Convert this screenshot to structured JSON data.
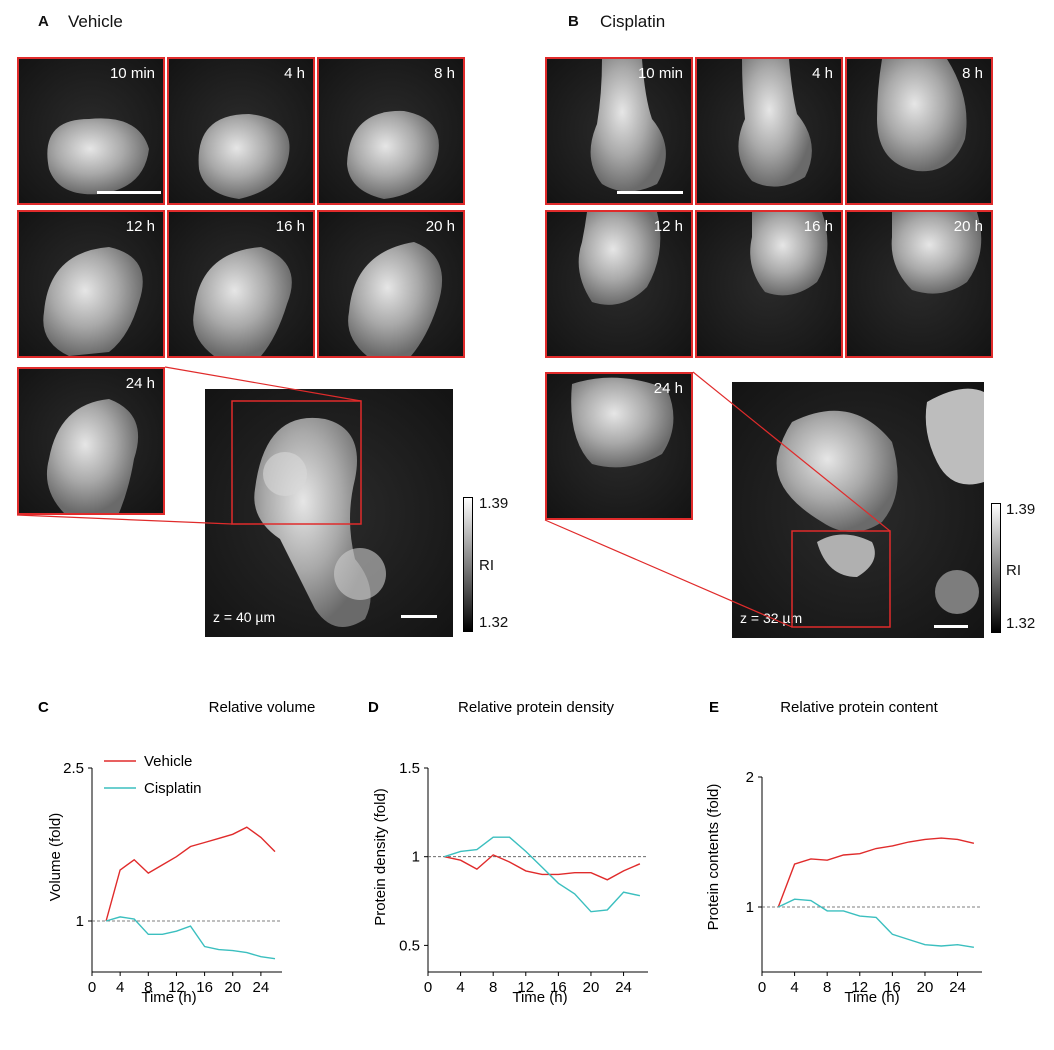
{
  "panels": {
    "A": {
      "letter": "A",
      "title": "Vehicle",
      "tiles": [
        "10 min",
        "4 h",
        "8 h",
        "12 h",
        "16 h",
        "20 h",
        "24 h"
      ],
      "z_label": "z = 40 µm"
    },
    "B": {
      "letter": "B",
      "title": "Cisplatin",
      "tiles": [
        "10 min",
        "4 h",
        "8 h",
        "12 h",
        "16 h",
        "20 h",
        "24 h"
      ],
      "z_label": "z = 32 µm"
    }
  },
  "colorbar": {
    "max": "1.39",
    "label": "RI",
    "min": "1.32"
  },
  "colors": {
    "vehicle": "#e02b2b",
    "cisplatin": "#3bbfbf",
    "frame": "#e02b2b"
  },
  "chart_data": [
    {
      "letter": "C",
      "type": "line",
      "title": "Relative volume",
      "xlabel": "Time (h)",
      "ylabel": "Volume (fold)",
      "xlim": [
        0,
        27
      ],
      "ylim": [
        0.5,
        2.5
      ],
      "xticks": [
        0,
        4,
        8,
        12,
        16,
        20,
        24
      ],
      "yticks": [
        1,
        2.5
      ],
      "yticklabels": [
        "1",
        "2.5"
      ],
      "reference_line": 1,
      "legend": [
        "Vehicle",
        "Cisplatin"
      ],
      "series": [
        {
          "name": "Vehicle",
          "x": [
            2,
            4,
            6,
            8,
            10,
            12,
            14,
            16,
            18,
            20,
            22,
            24,
            26
          ],
          "values": [
            1.0,
            1.5,
            1.6,
            1.47,
            1.55,
            1.63,
            1.73,
            1.77,
            1.81,
            1.85,
            1.92,
            1.82,
            1.68
          ]
        },
        {
          "name": "Cisplatin",
          "x": [
            2,
            4,
            6,
            8,
            10,
            12,
            14,
            16,
            18,
            20,
            22,
            24,
            26
          ],
          "values": [
            1.0,
            1.04,
            1.02,
            0.87,
            0.87,
            0.9,
            0.95,
            0.75,
            0.72,
            0.71,
            0.69,
            0.65,
            0.63
          ]
        }
      ]
    },
    {
      "letter": "D",
      "type": "line",
      "title": "Relative protein density",
      "xlabel": "Time (h)",
      "ylabel": "Protein density (fold)",
      "xlim": [
        0,
        27
      ],
      "ylim": [
        0.35,
        1.5
      ],
      "xticks": [
        0,
        4,
        8,
        12,
        16,
        20,
        24
      ],
      "yticks": [
        0.5,
        1,
        1.5
      ],
      "yticklabels": [
        "0.5",
        "1",
        "1.5"
      ],
      "reference_line": 1,
      "series": [
        {
          "name": "Vehicle",
          "x": [
            2,
            4,
            6,
            8,
            10,
            12,
            14,
            16,
            18,
            20,
            22,
            24,
            26
          ],
          "values": [
            1.0,
            0.98,
            0.93,
            1.01,
            0.97,
            0.92,
            0.9,
            0.9,
            0.91,
            0.91,
            0.87,
            0.92,
            0.96
          ]
        },
        {
          "name": "Cisplatin",
          "x": [
            2,
            4,
            6,
            8,
            10,
            12,
            14,
            16,
            18,
            20,
            22,
            24,
            26
          ],
          "values": [
            1.0,
            1.03,
            1.04,
            1.11,
            1.11,
            1.03,
            0.94,
            0.85,
            0.79,
            0.69,
            0.7,
            0.8,
            0.78
          ]
        }
      ]
    },
    {
      "letter": "E",
      "type": "line",
      "title": "Relative protein content",
      "xlabel": "Time (h)",
      "ylabel": "Protein contents (fold)",
      "xlim": [
        0,
        27
      ],
      "ylim": [
        0.5,
        2.0
      ],
      "xticks": [
        0,
        4,
        8,
        12,
        16,
        20,
        24
      ],
      "yticks": [
        1,
        2
      ],
      "yticklabels": [
        "1",
        "2"
      ],
      "reference_line": 1,
      "series": [
        {
          "name": "Vehicle",
          "x": [
            2,
            4,
            6,
            8,
            10,
            12,
            14,
            16,
            18,
            20,
            22,
            24,
            26
          ],
          "values": [
            1.0,
            1.33,
            1.37,
            1.36,
            1.4,
            1.41,
            1.45,
            1.47,
            1.5,
            1.52,
            1.53,
            1.52,
            1.49
          ]
        },
        {
          "name": "Cisplatin",
          "x": [
            2,
            4,
            6,
            8,
            10,
            12,
            14,
            16,
            18,
            20,
            22,
            24,
            26
          ],
          "values": [
            1.0,
            1.06,
            1.05,
            0.97,
            0.97,
            0.93,
            0.92,
            0.79,
            0.75,
            0.71,
            0.7,
            0.71,
            0.69
          ]
        }
      ]
    }
  ]
}
